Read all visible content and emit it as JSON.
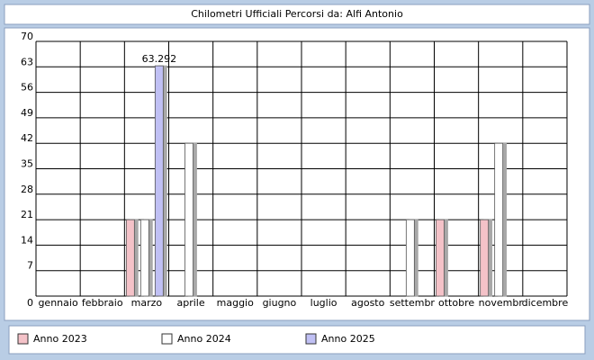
{
  "chart_data": {
    "type": "bar",
    "title": "Chilometri Ufficiali Percorsi da: Alfi Antonio",
    "categories": [
      "gennaio",
      "febbraio",
      "marzo",
      "aprile",
      "maggio",
      "giugno",
      "luglio",
      "agosto",
      "settembr",
      "ottobre",
      "novembr",
      "dicembre"
    ],
    "series": [
      {
        "name": "Anno 2023",
        "color": "#f4c2c8",
        "values": [
          null,
          null,
          21,
          null,
          null,
          null,
          null,
          null,
          null,
          21,
          21,
          null
        ]
      },
      {
        "name": "Anno 2024",
        "color": "#ffffff",
        "values": [
          null,
          null,
          21,
          42,
          null,
          null,
          null,
          null,
          21,
          null,
          42,
          null
        ]
      },
      {
        "name": "Anno 2025",
        "color": "#c0c0f4",
        "values": [
          null,
          null,
          63.292,
          null,
          null,
          null,
          null,
          null,
          null,
          null,
          null,
          null
        ],
        "value_labels": [
          null,
          null,
          "63.292",
          null,
          null,
          null,
          null,
          null,
          null,
          null,
          null,
          null
        ]
      }
    ],
    "ylim": [
      0,
      70
    ],
    "yticks": [
      0,
      7,
      14,
      21,
      28,
      35,
      42,
      49,
      56,
      63,
      70
    ],
    "grid": true
  }
}
